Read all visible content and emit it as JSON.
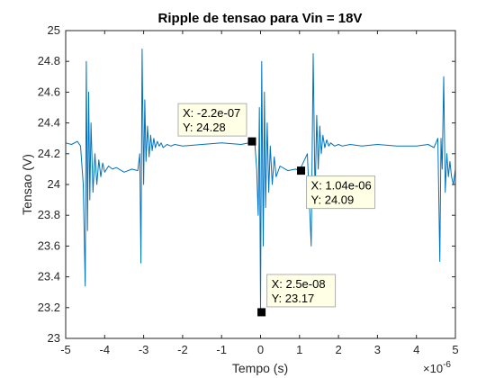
{
  "chart_data": {
    "type": "line",
    "title": "Ripple de tensao para Vin = 18V",
    "xlabel": "Tempo (s)",
    "ylabel": "Tensao (V)",
    "x_multiplier": "×10",
    "x_multiplier_exp": "-6",
    "xlim": [
      -5,
      5
    ],
    "ylim": [
      23,
      25
    ],
    "xticks": [
      -5,
      -4,
      -3,
      -2,
      -1,
      0,
      1,
      2,
      3,
      4,
      5
    ],
    "yticks": [
      23,
      23.2,
      23.4,
      23.6,
      23.8,
      24,
      24.2,
      24.4,
      24.6,
      24.8,
      25
    ],
    "series": [
      {
        "color": "#0072BD",
        "x": [
          -5.0,
          -4.85,
          -4.7,
          -4.62,
          -4.55,
          -4.5,
          -4.47,
          -4.44,
          -4.41,
          -4.38,
          -4.35,
          -4.3,
          -4.25,
          -4.2,
          -4.15,
          -4.1,
          -4.05,
          -4.0,
          -3.9,
          -3.8,
          -3.7,
          -3.5,
          -3.3,
          -3.15,
          -3.1,
          -3.07,
          -3.04,
          -3.0,
          -2.97,
          -2.94,
          -2.9,
          -2.86,
          -2.82,
          -2.78,
          -2.74,
          -2.7,
          -2.65,
          -2.6,
          -2.55,
          -2.5,
          -2.4,
          -2.3,
          -2.2,
          -2.0,
          -1.5,
          -1.0,
          -0.5,
          -0.3,
          -0.15,
          -0.1,
          -0.06,
          -0.03,
          0.0,
          0.03,
          0.07,
          0.1,
          0.13,
          0.17,
          0.21,
          0.25,
          0.3,
          0.35,
          0.4,
          0.5,
          0.7,
          0.9,
          1.0,
          1.2,
          1.3,
          1.35,
          1.4,
          1.44,
          1.48,
          1.52,
          1.56,
          1.6,
          1.65,
          1.7,
          1.75,
          1.8,
          1.9,
          2.0,
          2.1,
          2.3,
          2.6,
          3.0,
          3.5,
          4.0,
          4.3,
          4.45,
          4.55,
          4.6,
          4.63,
          4.66,
          4.7,
          4.74,
          4.78,
          4.82,
          4.86,
          4.9,
          4.95,
          5.0
        ],
        "y": [
          24.27,
          24.26,
          24.28,
          24.25,
          24.0,
          23.34,
          24.8,
          23.7,
          24.6,
          23.9,
          24.4,
          23.95,
          24.2,
          24.0,
          24.16,
          24.05,
          24.14,
          24.08,
          24.12,
          24.1,
          24.11,
          24.08,
          24.1,
          24.09,
          24.2,
          23.49,
          24.88,
          24.0,
          24.55,
          24.15,
          24.38,
          24.18,
          24.32,
          24.22,
          24.3,
          24.24,
          24.28,
          24.25,
          24.27,
          24.24,
          24.26,
          24.25,
          24.26,
          24.25,
          24.26,
          24.27,
          24.26,
          24.27,
          24.28,
          24.1,
          23.8,
          24.5,
          23.17,
          24.8,
          23.6,
          24.6,
          23.85,
          24.4,
          23.95,
          24.25,
          24.0,
          24.18,
          24.05,
          24.12,
          24.09,
          24.1,
          24.09,
          24.2,
          23.6,
          24.85,
          23.9,
          24.45,
          24.1,
          24.38,
          24.2,
          24.32,
          24.24,
          24.29,
          24.25,
          24.27,
          24.25,
          24.26,
          24.25,
          24.26,
          24.25,
          24.26,
          24.25,
          24.25,
          24.26,
          24.24,
          24.3,
          23.5,
          24.3,
          24.1,
          24.7,
          23.95,
          24.2,
          24.05,
          24.15,
          24.05,
          24.0,
          24.1
        ]
      }
    ],
    "datatips": [
      {
        "x": -0.22,
        "y": 24.28,
        "line1": "X: -2.2e-07",
        "line2": "Y: 24.28",
        "anchor": "upper-left"
      },
      {
        "x": 0.025,
        "y": 23.17,
        "line1": "X: 2.5e-08",
        "line2": "Y: 23.17",
        "anchor": "upper-right"
      },
      {
        "x": 1.04,
        "y": 24.09,
        "line1": "X: 1.04e-06",
        "line2": "Y: 24.09",
        "anchor": "lower-right"
      }
    ]
  }
}
